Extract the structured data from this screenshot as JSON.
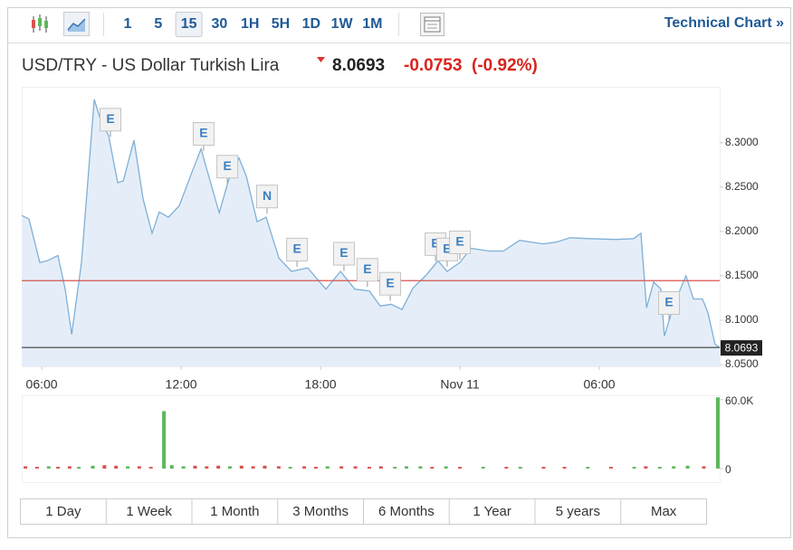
{
  "toolbar": {
    "intervals": [
      "1",
      "5",
      "15",
      "30",
      "1H",
      "5H",
      "1D",
      "1W",
      "1M"
    ],
    "selected": 2,
    "link": "Technical Chart »"
  },
  "header": {
    "title": "USD/TRY - US Dollar Turkish Lira",
    "price": 8.0693,
    "change": -0.0753,
    "change_pct": "(-0.92%)"
  },
  "chart_data": {
    "type": "area",
    "x": [
      5.14,
      5.45,
      5.92,
      6.23,
      6.7,
      7.01,
      7.29,
      7.71,
      8.26,
      8.57,
      8.88,
      9.27,
      9.51,
      9.97,
      10.36,
      10.75,
      11.06,
      11.45,
      11.92,
      12.47,
      12.86,
      13.25,
      13.64,
      14.03,
      14.49,
      14.81,
      15.27,
      15.66,
      16.21,
      16.75,
      17.45,
      18.23,
      18.86,
      19.48,
      20.1,
      20.57,
      21.04,
      21.51,
      21.97,
      22.52,
      23.06,
      23.45,
      24.0,
      24.47,
      25.25,
      25.87,
      26.57,
      27.58,
      28.13,
      28.75,
      29.53,
      30.7,
      31.48,
      31.79,
      32.03,
      32.34,
      32.65,
      32.8,
      33.11,
      33.5,
      33.73,
      34.05,
      34.44,
      34.67,
      34.98,
      35.18
    ],
    "values": [
      8.218,
      8.214,
      8.165,
      8.167,
      8.173,
      8.135,
      8.084,
      8.165,
      8.349,
      8.323,
      8.308,
      8.255,
      8.257,
      8.303,
      8.237,
      8.198,
      8.222,
      8.216,
      8.229,
      8.267,
      8.293,
      8.257,
      8.221,
      8.257,
      8.283,
      8.262,
      8.211,
      8.216,
      8.17,
      8.155,
      8.159,
      8.135,
      8.155,
      8.135,
      8.133,
      8.116,
      8.118,
      8.112,
      8.136,
      8.15,
      8.167,
      8.155,
      8.165,
      8.181,
      8.178,
      8.178,
      8.19,
      8.186,
      8.188,
      8.193,
      8.192,
      8.191,
      8.192,
      8.198,
      8.114,
      8.143,
      8.135,
      8.082,
      8.109,
      8.136,
      8.15,
      8.124,
      8.124,
      8.109,
      8.073,
      8.0693
    ],
    "color": "#7fb0d8",
    "fill": "#e5eef8",
    "xlim": [
      5.14,
      35.18
    ],
    "xticks": [
      {
        "value": 6,
        "label": "06:00"
      },
      {
        "value": 12,
        "label": "12:00"
      },
      {
        "value": 18,
        "label": "18:00"
      },
      {
        "value": 24,
        "label": "Nov 11"
      },
      {
        "value": 30,
        "label": "06:00"
      }
    ],
    "ylim": [
      8.048,
      8.362
    ],
    "yticks": [
      {
        "value": 8.05,
        "label": "8.0500"
      },
      {
        "value": 8.1,
        "label": "8.1000"
      },
      {
        "value": 8.15,
        "label": "8.1500"
      },
      {
        "value": 8.2,
        "label": "8.2000"
      },
      {
        "value": 8.25,
        "label": "8.2500"
      },
      {
        "value": 8.3,
        "label": "8.3000"
      }
    ],
    "prev_close": 8.1446,
    "prev_close_color": "#d9534f",
    "events": [
      {
        "label": "E",
        "x": 8.92
      },
      {
        "label": "E",
        "x": 12.93
      },
      {
        "label": "E",
        "x": 13.95
      },
      {
        "label": "N",
        "x": 15.66
      },
      {
        "label": "E",
        "x": 16.95
      },
      {
        "label": "E",
        "x": 18.97
      },
      {
        "label": "E",
        "x": 19.98
      },
      {
        "label": "E",
        "x": 20.96
      },
      {
        "label": "E",
        "x": 22.91
      },
      {
        "label": "E",
        "x": 23.41
      },
      {
        "label": "E",
        "x": 23.96
      },
      {
        "label": "E",
        "x": 32.96
      }
    ],
    "volume": {
      "x": [
        5.3,
        5.8,
        6.3,
        6.7,
        7.2,
        7.6,
        8.2,
        8.7,
        9.2,
        9.7,
        10.2,
        10.7,
        11.26,
        11.6,
        12.1,
        12.6,
        13.1,
        13.6,
        14.1,
        14.6,
        15.1,
        15.6,
        16.2,
        16.7,
        17.3,
        17.8,
        18.3,
        18.9,
        19.5,
        20.1,
        20.6,
        21.2,
        21.7,
        22.3,
        22.8,
        23.4,
        24.0,
        25.0,
        26.0,
        26.6,
        27.6,
        28.5,
        29.5,
        30.5,
        31.5,
        32.0,
        32.6,
        33.2,
        33.8,
        34.5,
        35.1
      ],
      "values": [
        2000,
        1500,
        2000,
        1500,
        2000,
        1500,
        2500,
        3000,
        2500,
        2000,
        2000,
        1500,
        50000,
        3000,
        2000,
        2500,
        2000,
        2500,
        2000,
        2500,
        2000,
        2500,
        2000,
        1500,
        2000,
        1500,
        2000,
        2000,
        2000,
        1500,
        2000,
        1500,
        2000,
        2000,
        1500,
        2000,
        1500,
        1500,
        1500,
        1500,
        1500,
        1500,
        1500,
        1500,
        1500,
        2000,
        1500,
        2000,
        2500,
        2000,
        62000
      ],
      "colors": [
        "#d9534f",
        "#d9534f",
        "#5cb85c",
        "#d9534f",
        "#d9534f",
        "#5cb85c",
        "#5cb85c",
        "#d9534f",
        "#d9534f",
        "#5cb85c",
        "#d9534f",
        "#d9534f",
        "#5cb85c",
        "#5cb85c",
        "#5cb85c",
        "#d9534f",
        "#d9534f",
        "#d9534f",
        "#5cb85c",
        "#d9534f",
        "#d9534f",
        "#d9534f",
        "#d9534f",
        "#5cb85c",
        "#d9534f",
        "#d9534f",
        "#5cb85c",
        "#d9534f",
        "#d9534f",
        "#d9534f",
        "#d9534f",
        "#5cb85c",
        "#5cb85c",
        "#5cb85c",
        "#d9534f",
        "#5cb85c",
        "#d9534f",
        "#5cb85c",
        "#d9534f",
        "#5cb85c",
        "#d9534f",
        "#d9534f",
        "#5cb85c",
        "#d9534f",
        "#5cb85c",
        "#d9534f",
        "#5cb85c",
        "#5cb85c",
        "#5cb85c",
        "#d9534f",
        "#5cb85c"
      ],
      "ylim": [
        0,
        63000
      ],
      "yticks": [
        0,
        {
          "value": 60000,
          "label": "60.0K"
        }
      ]
    }
  },
  "ranges": [
    "1 Day",
    "1 Week",
    "1 Month",
    "3 Months",
    "6 Months",
    "1 Year",
    "5 years",
    "Max"
  ]
}
